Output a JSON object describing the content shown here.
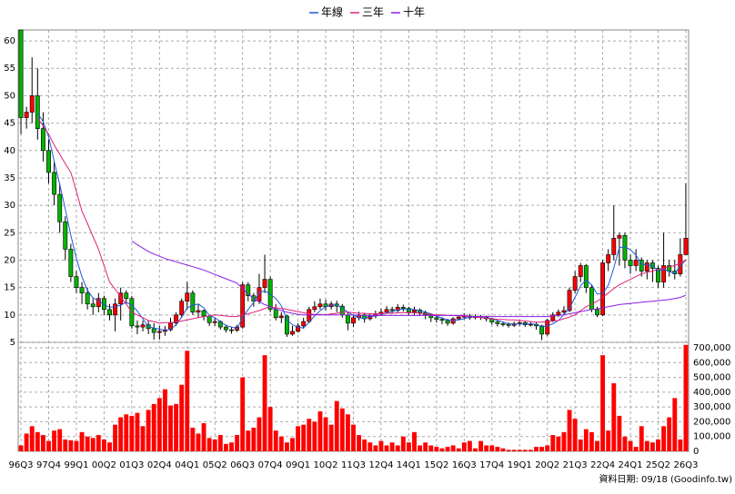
{
  "chart_data": [
    {
      "type": "candlestick",
      "categories": [
        "96Q3",
        null,
        null,
        null,
        null,
        "97Q4",
        null,
        null,
        null,
        null,
        "99Q1",
        null,
        null,
        null,
        null,
        "00Q2",
        null,
        null,
        null,
        null,
        "01Q3",
        null,
        null,
        null,
        null,
        "02Q4",
        null,
        null,
        null,
        null,
        "04Q1",
        null,
        null,
        null,
        null,
        "05Q2",
        null,
        null,
        null,
        null,
        "06Q3",
        null,
        null,
        null,
        null,
        "07Q4",
        null,
        null,
        null,
        null,
        "09Q1",
        null,
        null,
        null,
        null,
        "10Q2",
        null,
        null,
        null,
        null,
        "11Q3",
        null,
        null,
        null,
        null,
        "12Q4",
        null,
        null,
        null,
        null,
        "14Q1",
        null,
        null,
        null,
        null,
        "15Q2",
        null,
        null,
        null,
        null,
        "16Q3",
        null,
        null,
        null,
        null,
        "17Q4",
        null,
        null,
        null,
        null,
        "19Q1",
        null,
        null,
        null,
        null,
        "20Q2",
        null,
        null,
        null,
        null,
        "21Q3",
        null,
        null,
        null,
        null,
        "22Q4",
        null,
        null,
        null,
        null,
        "24Q1",
        null,
        null,
        null,
        null,
        "25Q2",
        null,
        null,
        null,
        null,
        "26Q3"
      ],
      "open": [
        62,
        46,
        47,
        50,
        44,
        40,
        36,
        32,
        27,
        22,
        17,
        15,
        14,
        12,
        11.5,
        13,
        11,
        10,
        12,
        14,
        13,
        8,
        7.8,
        8.2,
        7.5,
        6.8,
        7,
        7.3,
        8.5,
        10,
        12.5,
        14,
        10.5,
        10.8,
        9.8,
        8.6,
        8.8,
        7.8,
        7.3,
        7.2,
        7.8,
        15.5,
        13.5,
        12.5,
        15,
        16.5,
        11,
        9.5,
        9.8,
        6.5,
        7,
        8,
        8.8,
        11,
        11.5,
        12,
        11.5,
        12,
        11.6,
        10,
        8.5,
        9.5,
        10,
        9.3,
        9.8,
        10.2,
        10.5,
        11,
        10.8,
        11.4,
        11.2,
        10.5,
        10.9,
        10.4,
        10,
        9.5,
        9.2,
        9,
        8.5,
        9.3,
        9.6,
        9.8,
        9.5,
        9.7,
        9.6,
        9.3,
        8.7,
        8.4,
        8.3,
        8.1,
        8.4,
        8.6,
        8.2,
        8.3,
        8,
        6.5,
        9,
        10,
        10.5,
        10.8,
        14.5,
        17,
        19,
        15,
        11,
        10,
        19.5,
        21,
        24,
        24.5,
        20,
        19,
        20,
        18,
        19.5,
        18.5,
        16,
        19,
        18,
        17.5,
        21
      ],
      "high": [
        62,
        48,
        57,
        55,
        47,
        42,
        38,
        34,
        28,
        23,
        18,
        16,
        15,
        13,
        14,
        13.5,
        12,
        13,
        15,
        14.5,
        13.5,
        9,
        9,
        9,
        8.5,
        8,
        8,
        9.5,
        10.5,
        13,
        16,
        14.5,
        12,
        11,
        10,
        9.5,
        9,
        8.2,
        7.8,
        8.2,
        16,
        16,
        14,
        17.5,
        21,
        17,
        12,
        10.5,
        10,
        8,
        8.5,
        9.5,
        11.5,
        12.5,
        13,
        12.8,
        12.5,
        12.6,
        12,
        10.5,
        10,
        10.6,
        10.3,
        10.3,
        10.8,
        11.2,
        11.6,
        11.5,
        12,
        11.9,
        11.5,
        11.5,
        11.2,
        10.8,
        10.3,
        10,
        9.6,
        9.3,
        9.6,
        10,
        10.3,
        10.2,
        10.1,
        10,
        9.9,
        9.5,
        9,
        8.8,
        8.6,
        8.8,
        9,
        8.8,
        8.7,
        8.6,
        8.2,
        9.3,
        10.5,
        11,
        11.6,
        15,
        18,
        19.5,
        19.3,
        15.5,
        11.5,
        20,
        22,
        30,
        25,
        25,
        21,
        22,
        20.5,
        20,
        20,
        19,
        25,
        20,
        20,
        24,
        34
      ],
      "low": [
        43,
        44,
        45,
        42,
        38,
        34,
        30,
        25,
        20,
        16,
        14,
        12,
        11,
        10,
        10.5,
        10,
        9,
        7,
        9,
        12,
        7.5,
        6.5,
        7,
        6.5,
        5.5,
        5.5,
        6.2,
        7,
        8,
        9.5,
        11,
        10,
        9.5,
        9,
        8,
        8,
        7.3,
        6.8,
        6.6,
        6.9,
        7.5,
        12.5,
        11.5,
        12,
        14,
        10.5,
        9,
        8.5,
        6,
        6.2,
        6.8,
        7.5,
        8.5,
        10.5,
        11,
        10.8,
        11,
        10.5,
        9.5,
        7.2,
        7.8,
        9,
        8.6,
        9,
        9.4,
        9.8,
        10.2,
        10.2,
        10.5,
        10.6,
        10,
        10,
        9.8,
        9.2,
        8.7,
        8.6,
        8.3,
        8,
        8.2,
        9,
        9.2,
        9.1,
        9.2,
        9.1,
        8.8,
        8.2,
        7.9,
        7.9,
        7.7,
        7.8,
        8,
        7.8,
        7.9,
        7.3,
        5.4,
        6.2,
        8.7,
        9.6,
        10,
        10.5,
        14,
        16,
        14,
        10.5,
        9.6,
        9.8,
        18,
        20,
        19,
        18.5,
        17.5,
        18,
        17,
        16.5,
        16,
        15,
        15,
        17,
        16.5,
        17,
        21
      ],
      "close": [
        46,
        47,
        50,
        44,
        40,
        36,
        32,
        27,
        22,
        17,
        15,
        14,
        12,
        11.5,
        13,
        11,
        10,
        12,
        14,
        13,
        8,
        7.8,
        8.2,
        7.5,
        6.8,
        7,
        7.3,
        8.5,
        10,
        12.5,
        14,
        10.5,
        10.8,
        9.8,
        8.6,
        8.8,
        7.8,
        7.3,
        7.2,
        7.8,
        15.5,
        13.5,
        12.5,
        15,
        16.5,
        11,
        9.5,
        9.8,
        6.5,
        7,
        8,
        8.8,
        11,
        11.5,
        12,
        11.5,
        12,
        11.6,
        10,
        8.5,
        9.5,
        10,
        9.3,
        9.8,
        10.2,
        10.5,
        11,
        10.8,
        11.4,
        11.2,
        10.5,
        10.9,
        10.4,
        10,
        9.5,
        9.2,
        9,
        8.5,
        9.3,
        9.6,
        9.8,
        9.5,
        9.7,
        9.6,
        9.3,
        8.7,
        8.4,
        8.3,
        8.1,
        8.4,
        8.6,
        8.2,
        8.3,
        8,
        6.5,
        9,
        10,
        10.5,
        10.8,
        14.5,
        17,
        19,
        15,
        11,
        10,
        19.5,
        21,
        24,
        24.5,
        20,
        19,
        20,
        18,
        19.5,
        18.5,
        16,
        19,
        18,
        17.5,
        21,
        24
      ],
      "up_color": "#ff0000",
      "down_color": "#00b400",
      "series": [
        {
          "name": "年線",
          "color": "#1e5adc",
          "values": [
            null,
            null,
            null,
            46.8,
            45.3,
            42.5,
            38,
            33.8,
            29.3,
            24.5,
            20.3,
            17,
            14.5,
            13.1,
            12.6,
            11.9,
            11.4,
            11.5,
            11.8,
            12.3,
            11.8,
            10.7,
            9.3,
            7.9,
            7.6,
            7.4,
            7.2,
            7.4,
            8.2,
            9.6,
            11.3,
            11.8,
            12,
            11.3,
            9.9,
            9.5,
            8.8,
            8.1,
            7.8,
            7.5,
            9.5,
            11,
            12.3,
            14.1,
            14.4,
            13.8,
            13,
            11.7,
            9.2,
            8.2,
            7.8,
            7.6,
            8.7,
            9.8,
            10.8,
            11.5,
            11.8,
            11.8,
            11.3,
            10.5,
            9.9,
            9.5,
            9.3,
            9.7,
            9.8,
            10,
            10.4,
            10.6,
            10.9,
            11.1,
            11,
            11,
            10.8,
            10.5,
            10.2,
            9.8,
            9.4,
            9.1,
            9,
            9.1,
            9.3,
            9.6,
            9.7,
            9.7,
            9.5,
            9.3,
            9,
            8.7,
            8.4,
            8.3,
            8.4,
            8.3,
            8.4,
            8.3,
            7.8,
            8,
            8.4,
            9,
            10.1,
            11.2,
            13.2,
            15.3,
            16.4,
            15.5,
            13.8,
            13.9,
            15.4,
            18.6,
            22.3,
            22.4,
            21.9,
            20.9,
            19.3,
            19.1,
            19,
            18,
            18.3,
            17.9,
            17.6,
            18.9,
            20.1
          ]
        },
        {
          "name": "三年",
          "color": "#e0207a",
          "values": [
            null,
            null,
            null,
            46,
            44.5,
            43,
            41,
            39.3,
            37.6,
            36,
            32.5,
            29,
            26.7,
            24.3,
            22,
            19,
            16,
            14.7,
            13.3,
            12,
            10.5,
            10,
            9.5,
            9,
            8.8,
            8.5,
            8.6,
            8.6,
            8.7,
            8.9,
            9.1,
            9.3,
            9.5,
            9.7,
            9.8,
            10,
            9.9,
            9.8,
            9.7,
            9.7,
            10,
            10.2,
            10.5,
            10.8,
            11.2,
            11.5,
            11.3,
            11.2,
            11,
            10.8,
            10.6,
            10.4,
            10.2,
            10.1,
            10.1,
            10,
            10.2,
            10.3,
            10.5,
            10.5,
            10.4,
            10.3,
            10.3,
            10.2,
            10.2,
            10.2,
            10.3,
            10.3,
            10.4,
            10.4,
            10.4,
            10.4,
            10.3,
            10.2,
            10.1,
            10,
            10,
            9.9,
            9.9,
            9.8,
            9.8,
            9.7,
            9.6,
            9.5,
            9.4,
            9.3,
            9.2,
            9.2,
            9.1,
            9.1,
            9,
            8.9,
            8.8,
            8.7,
            8.7,
            8.8,
            8.9,
            9,
            9.3,
            9.6,
            10,
            10.8,
            11.5,
            12,
            12.5,
            13.2,
            14,
            14.8,
            15.5,
            16,
            16.5,
            17,
            17.5,
            17.8,
            18,
            18.3,
            18.5,
            18.8,
            19,
            19.5,
            20
          ]
        },
        {
          "name": "十年",
          "color": "#8c1ee6",
          "values": [
            null,
            null,
            null,
            null,
            null,
            null,
            null,
            null,
            null,
            null,
            null,
            null,
            null,
            null,
            null,
            null,
            null,
            null,
            null,
            null,
            23.5,
            22.8,
            22.2,
            21.6,
            21.1,
            20.7,
            20.3,
            20,
            19.7,
            19.4,
            19.1,
            18.8,
            18.5,
            18.2,
            17.8,
            17.4,
            17,
            16.6,
            16.2,
            15.8,
            14.8,
            13.8,
            13,
            12.4,
            11.9,
            11.5,
            11.1,
            10.8,
            10.5,
            10.3,
            10.1,
            10,
            10,
            10,
            10,
            10,
            10,
            10,
            10,
            10,
            10,
            9.9,
            9.9,
            9.9,
            9.9,
            9.9,
            9.9,
            9.9,
            9.9,
            9.9,
            9.9,
            9.9,
            9.9,
            9.9,
            9.9,
            9.9,
            9.9,
            9.9,
            9.9,
            9.9,
            9.9,
            9.7,
            9.7,
            9.7,
            9.7,
            9.7,
            9.7,
            9.7,
            9.7,
            9.7,
            9.7,
            9.7,
            9.7,
            9.7,
            9.7,
            9.7,
            9.8,
            9.9,
            10,
            10.2,
            10.4,
            10.6,
            10.8,
            11,
            11.1,
            11.3,
            11.5,
            11.7,
            11.9,
            12,
            12.1,
            12.2,
            12.3,
            12.4,
            12.5,
            12.6,
            12.7,
            12.8,
            13,
            13.2,
            13.6
          ]
        }
      ],
      "ylim": [
        5,
        62
      ],
      "yticks": [
        5,
        10,
        15,
        20,
        25,
        30,
        35,
        40,
        45,
        50,
        55,
        60
      ],
      "grid": true
    },
    {
      "type": "bar",
      "color": "#ff0000",
      "values": [
        40000,
        120000,
        170000,
        130000,
        110000,
        70000,
        140000,
        150000,
        80000,
        75000,
        70000,
        130000,
        100000,
        90000,
        110000,
        80000,
        60000,
        180000,
        230000,
        250000,
        240000,
        260000,
        170000,
        280000,
        320000,
        360000,
        420000,
        310000,
        320000,
        450000,
        680000,
        160000,
        120000,
        190000,
        90000,
        80000,
        110000,
        50000,
        60000,
        110000,
        500000,
        140000,
        160000,
        230000,
        650000,
        300000,
        140000,
        100000,
        60000,
        90000,
        170000,
        180000,
        220000,
        200000,
        270000,
        230000,
        180000,
        340000,
        290000,
        250000,
        180000,
        110000,
        80000,
        60000,
        40000,
        70000,
        40000,
        60000,
        40000,
        100000,
        60000,
        130000,
        40000,
        60000,
        40000,
        30000,
        20000,
        30000,
        40000,
        20000,
        60000,
        70000,
        20000,
        70000,
        40000,
        40000,
        30000,
        20000,
        10000,
        10000,
        10000,
        10000,
        10000,
        30000,
        30000,
        40000,
        110000,
        100000,
        130000,
        280000,
        220000,
        80000,
        150000,
        130000,
        70000,
        650000,
        140000,
        460000,
        240000,
        100000,
        70000,
        30000,
        170000,
        70000,
        60000,
        80000,
        170000,
        230000,
        360000,
        80000,
        720000
      ],
      "ylim": [
        0,
        737000
      ],
      "yticks": [
        0,
        {
          "value": 100000,
          "label": "100,000"
        },
        {
          "value": 200000,
          "label": "200,000"
        },
        {
          "value": 300000,
          "label": "300,000"
        },
        {
          "value": 400000,
          "label": "400,000"
        },
        {
          "value": 500000,
          "label": "500,000"
        },
        {
          "value": 600000,
          "label": "600,000"
        },
        {
          "value": 700000,
          "label": "700,000"
        }
      ],
      "grid": true
    }
  ],
  "footnote": "資料日期: 09/18 (Goodinfo.tw)"
}
